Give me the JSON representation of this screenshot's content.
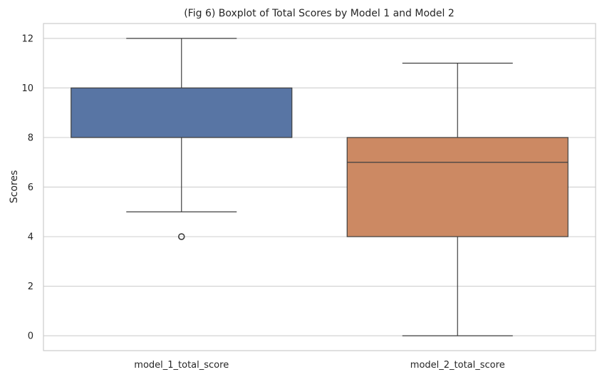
{
  "chart_data": {
    "type": "box",
    "title": "(Fig 6) Boxplot of Total Scores by Model 1 and Model 2",
    "xlabel": "",
    "ylabel": "Scores",
    "ylim": [
      -0.6,
      12.6
    ],
    "yticks": [
      "0",
      "2",
      "4",
      "6",
      "8",
      "10",
      "12"
    ],
    "grid": true,
    "categories": [
      "model_1_total_score",
      "model_2_total_score"
    ],
    "series": [
      {
        "category": "model_1_total_score",
        "whisker_low": 5,
        "q1": 8,
        "median": 8,
        "q3": 10,
        "whisker_high": 12,
        "outliers": [
          4
        ],
        "color": "#5875a4"
      },
      {
        "category": "model_2_total_score",
        "whisker_low": 0,
        "q1": 4,
        "median": 7,
        "q3": 8,
        "whisker_high": 11,
        "outliers": [],
        "color": "#cc8963"
      }
    ],
    "colors": {
      "grid": "#d3d3d3",
      "frame": "#cccccc",
      "lines": "#3f3f3f",
      "text": "#262626"
    }
  }
}
